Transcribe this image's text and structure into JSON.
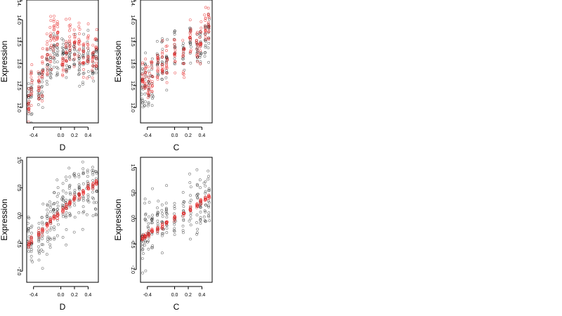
{
  "colors": {
    "observed": "#000000",
    "fitted": "#e61e1e"
  },
  "chart_data": [
    {
      "type": "scatter",
      "xlabel": "D",
      "ylabel": "Expression",
      "xlim": [
        -0.5,
        0.55
      ],
      "ylim": [
        11.65,
        14.45
      ],
      "xticks": [
        -0.4,
        0.0,
        0.2,
        0.4
      ],
      "xtick_labels": [
        "-0.4",
        "0.0",
        "0.2",
        "0.4"
      ],
      "yticks": [
        12.0,
        12.5,
        13.0,
        13.5,
        14.0
      ],
      "ytick_labels": [
        "12.0",
        "12.5",
        "13.0",
        "13.5",
        "14.0"
      ],
      "ytick_top_label": "14.",
      "x_groups": [
        -0.47,
        -0.43,
        -0.32,
        -0.27,
        -0.2,
        -0.15,
        -0.1,
        -0.05,
        0.03,
        0.08,
        0.13,
        0.2,
        0.27,
        0.33,
        0.4,
        0.47,
        0.52
      ],
      "series": [
        {
          "name": "",
          "color": "#000000",
          "spread": 0.55,
          "center_x": [
            -0.47,
            -0.43,
            -0.32,
            -0.27,
            -0.2,
            -0.15,
            -0.1,
            -0.05,
            0.03,
            0.08,
            0.13,
            0.2,
            0.27,
            0.33,
            0.4,
            0.47,
            0.52
          ],
          "center_y": [
            12.2,
            12.3,
            12.4,
            12.5,
            12.9,
            13.0,
            13.2,
            13.1,
            13.3,
            13.1,
            13.2,
            13.3,
            13.0,
            13.1,
            13.2,
            13.0,
            13.1
          ]
        },
        {
          "name": "",
          "color": "#e61e1e",
          "spread": 0.55,
          "center_x": [
            -0.47,
            -0.43,
            -0.32,
            -0.27,
            -0.2,
            -0.15,
            -0.1,
            -0.05,
            0.03,
            0.08,
            0.13,
            0.2,
            0.27,
            0.33,
            0.4,
            0.47,
            0.52
          ],
          "center_y": [
            12.2,
            12.4,
            12.5,
            12.8,
            13.2,
            13.5,
            13.6,
            13.7,
            13.0,
            13.2,
            13.5,
            13.3,
            13.4,
            13.1,
            13.3,
            13.1,
            13.3
          ]
        }
      ]
    },
    {
      "type": "scatter",
      "xlabel": "C",
      "ylabel": "Expression",
      "xlim": [
        -0.5,
        0.55
      ],
      "ylim": [
        11.65,
        14.45
      ],
      "xticks": [
        -0.4,
        0.0,
        0.2,
        0.4
      ],
      "xtick_labels": [
        "-0.4",
        "0.0",
        "0.2",
        "0.4"
      ],
      "yticks": [
        12.0,
        12.5,
        13.0,
        13.5,
        14.0
      ],
      "ytick_labels": [
        "12.0",
        "12.5",
        "13.0",
        "13.5",
        "14.0"
      ],
      "ytick_top_label": "14.",
      "x_groups": [
        -0.47,
        -0.43,
        -0.38,
        -0.33,
        -0.25,
        -0.18,
        -0.12,
        0.0,
        0.13,
        0.23,
        0.33,
        0.38,
        0.45,
        0.5
      ],
      "series": [
        {
          "name": "",
          "color": "#000000",
          "spread": 0.6,
          "center_x": [
            -0.47,
            -0.43,
            -0.38,
            -0.33,
            -0.25,
            -0.18,
            -0.12,
            0.0,
            0.13,
            0.23,
            0.33,
            0.38,
            0.45,
            0.5
          ],
          "center_y": [
            12.5,
            12.6,
            12.4,
            12.7,
            12.9,
            13.1,
            13.0,
            13.3,
            13.1,
            13.5,
            13.3,
            13.4,
            13.6,
            13.8
          ]
        },
        {
          "name": "",
          "color": "#e61e1e",
          "spread": 0.5,
          "center_x": [
            -0.47,
            -0.43,
            -0.38,
            -0.33,
            -0.25,
            -0.18,
            -0.12,
            0.0,
            0.13,
            0.23,
            0.33,
            0.38,
            0.45,
            0.5
          ],
          "center_y": [
            12.6,
            12.7,
            12.6,
            12.8,
            12.9,
            13.0,
            13.0,
            13.2,
            13.1,
            13.6,
            13.4,
            13.5,
            13.8,
            13.9
          ]
        }
      ]
    },
    {
      "type": "scatter",
      "xlabel": "D",
      "ylabel": "Expression",
      "xlim": [
        -0.5,
        0.55
      ],
      "ylim": [
        -1.2,
        1.05
      ],
      "xticks": [
        -0.4,
        0.0,
        0.2,
        0.4
      ],
      "xtick_labels": [
        "-0.4",
        "0.0",
        "0.2",
        "0.4"
      ],
      "yticks": [
        -1.0,
        -0.5,
        0.0,
        0.5,
        1.0
      ],
      "ytick_labels": [
        "-1.0",
        "-0.5",
        "0.0",
        "0.5",
        "1.0"
      ],
      "x_groups": [
        -0.47,
        -0.43,
        -0.32,
        -0.27,
        -0.2,
        -0.15,
        -0.1,
        -0.05,
        0.03,
        0.08,
        0.13,
        0.2,
        0.27,
        0.33,
        0.4,
        0.47,
        0.52
      ],
      "series": [
        {
          "name": "",
          "color": "#000000",
          "spread": 0.55,
          "center_x": [
            -0.47,
            -0.43,
            -0.32,
            -0.27,
            -0.2,
            -0.15,
            -0.1,
            -0.05,
            0.03,
            0.08,
            0.13,
            0.2,
            0.27,
            0.33,
            0.4,
            0.47,
            0.52
          ],
          "center_y": [
            -0.5,
            -0.6,
            -0.4,
            -0.3,
            -0.15,
            -0.05,
            0.0,
            0.1,
            0.2,
            0.25,
            0.3,
            0.35,
            0.4,
            0.45,
            0.45,
            0.5,
            0.55
          ]
        }
      ],
      "fit": {
        "name": "",
        "color": "#e61e1e",
        "x": [
          -0.47,
          -0.43,
          -0.32,
          -0.27,
          -0.2,
          -0.15,
          -0.1,
          -0.05,
          0.03,
          0.08,
          0.13,
          0.2,
          0.27,
          0.33,
          0.4,
          0.47,
          0.52
        ],
        "y": [
          -0.52,
          -0.44,
          -0.34,
          -0.26,
          -0.18,
          -0.1,
          -0.04,
          0.02,
          0.1,
          0.17,
          0.22,
          0.3,
          0.36,
          0.42,
          0.49,
          0.55,
          0.6
        ]
      }
    },
    {
      "type": "scatter",
      "xlabel": "C",
      "ylabel": "Expression",
      "xlim": [
        -0.5,
        0.55
      ],
      "ylim": [
        -1.25,
        1.2
      ],
      "xticks": [
        -0.4,
        0.0,
        0.2,
        0.4
      ],
      "xtick_labels": [
        "-0.4",
        "0.0",
        "0.2",
        "0.4"
      ],
      "yticks": [
        -1.0,
        -0.5,
        0.0,
        0.5,
        1.0
      ],
      "ytick_labels": [
        "-1.0",
        "-0.5",
        "0.0",
        "0.5",
        "1.0"
      ],
      "x_groups": [
        -0.47,
        -0.43,
        -0.38,
        -0.33,
        -0.25,
        -0.18,
        -0.12,
        0.0,
        0.13,
        0.23,
        0.33,
        0.38,
        0.45,
        0.5
      ],
      "series": [
        {
          "name": "",
          "color": "#000000",
          "spread": 0.6,
          "center_x": [
            -0.47,
            -0.43,
            -0.38,
            -0.33,
            -0.25,
            -0.18,
            -0.12,
            0.0,
            0.13,
            0.23,
            0.33,
            0.38,
            0.45,
            0.5
          ],
          "center_y": [
            -0.4,
            -0.35,
            -0.3,
            -0.2,
            -0.15,
            -0.1,
            -0.05,
            0.0,
            0.1,
            0.2,
            0.25,
            0.3,
            0.35,
            0.45
          ]
        }
      ],
      "fit": {
        "name": "",
        "color": "#e61e1e",
        "x": [
          -0.47,
          -0.43,
          -0.38,
          -0.33,
          -0.25,
          -0.18,
          -0.12,
          0.0,
          0.13,
          0.23,
          0.33,
          0.38,
          0.45,
          0.5
        ],
        "y": [
          -0.38,
          -0.34,
          -0.3,
          -0.25,
          -0.19,
          -0.14,
          -0.1,
          0.0,
          0.1,
          0.18,
          0.27,
          0.31,
          0.37,
          0.42
        ]
      }
    }
  ]
}
